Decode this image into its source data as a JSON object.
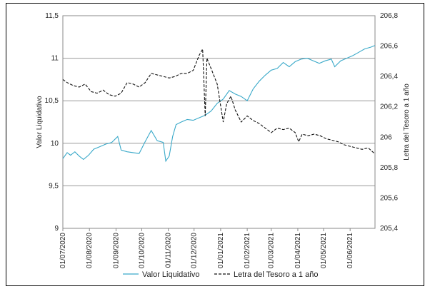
{
  "chart_data": {
    "type": "line",
    "title": "",
    "ylabel": "Valor Liquidativo",
    "y2label": "Letra del Tesoro a 1 año",
    "ylim": [
      9,
      11.5
    ],
    "y2lim": [
      205.4,
      206.8
    ],
    "xlim": [
      "2020-07-01",
      "2021-06-30"
    ],
    "y_ticks": [
      "9",
      "9,5",
      "10",
      "10,5",
      "11",
      "11,5"
    ],
    "y2_ticks": [
      "205,4",
      "205,6",
      "205,8",
      "206",
      "206,2",
      "206,4",
      "206,6",
      "206,8"
    ],
    "x_ticks": [
      {
        "date": "2020-07-01",
        "label": "01/07/2020"
      },
      {
        "date": "2020-08-01",
        "label": "01/08/2020"
      },
      {
        "date": "2020-09-01",
        "label": "01/09/2020"
      },
      {
        "date": "2020-10-01",
        "label": "01/10/2020"
      },
      {
        "date": "2020-11-01",
        "label": "01/11/2020"
      },
      {
        "date": "2020-12-01",
        "label": "01/12/2020"
      },
      {
        "date": "2021-01-01",
        "label": "01/01/2021"
      },
      {
        "date": "2021-02-01",
        "label": "01/02/2021"
      },
      {
        "date": "2021-03-01",
        "label": "01/03/2021"
      },
      {
        "date": "2021-04-01",
        "label": "01/04/2021"
      },
      {
        "date": "2021-05-01",
        "label": "01/05/2021"
      },
      {
        "date": "2021-06-01",
        "label": "01/06/2021"
      }
    ],
    "grid": true,
    "legend_position": "bottom",
    "series": [
      {
        "name": "Valor Liquidativo",
        "axis": "left",
        "color": "#3aa9c9",
        "dash": "solid",
        "points": [
          [
            "2020-07-01",
            9.82
          ],
          [
            "2020-07-06",
            9.89
          ],
          [
            "2020-07-10",
            9.86
          ],
          [
            "2020-07-15",
            9.9
          ],
          [
            "2020-07-20",
            9.85
          ],
          [
            "2020-07-25",
            9.81
          ],
          [
            "2020-07-31",
            9.86
          ],
          [
            "2020-08-06",
            9.93
          ],
          [
            "2020-08-13",
            9.96
          ],
          [
            "2020-08-20",
            9.99
          ],
          [
            "2020-08-27",
            10.01
          ],
          [
            "2020-09-03",
            10.08
          ],
          [
            "2020-09-07",
            9.92
          ],
          [
            "2020-09-14",
            9.9
          ],
          [
            "2020-09-21",
            9.89
          ],
          [
            "2020-09-28",
            9.88
          ],
          [
            "2020-10-05",
            10.02
          ],
          [
            "2020-10-12",
            10.15
          ],
          [
            "2020-10-19",
            10.03
          ],
          [
            "2020-10-26",
            10.01
          ],
          [
            "2020-10-29",
            9.79
          ],
          [
            "2020-11-02",
            9.85
          ],
          [
            "2020-11-06",
            10.08
          ],
          [
            "2020-11-10",
            10.22
          ],
          [
            "2020-11-16",
            10.25
          ],
          [
            "2020-11-23",
            10.28
          ],
          [
            "2020-11-30",
            10.27
          ],
          [
            "2020-12-07",
            10.3
          ],
          [
            "2020-12-14",
            10.33
          ],
          [
            "2020-12-21",
            10.38
          ],
          [
            "2020-12-28",
            10.47
          ],
          [
            "2021-01-04",
            10.52
          ],
          [
            "2021-01-11",
            10.62
          ],
          [
            "2021-01-18",
            10.58
          ],
          [
            "2021-01-25",
            10.55
          ],
          [
            "2021-02-01",
            10.5
          ],
          [
            "2021-02-08",
            10.64
          ],
          [
            "2021-02-15",
            10.73
          ],
          [
            "2021-02-22",
            10.8
          ],
          [
            "2021-03-01",
            10.86
          ],
          [
            "2021-03-08",
            10.88
          ],
          [
            "2021-03-15",
            10.95
          ],
          [
            "2021-03-22",
            10.9
          ],
          [
            "2021-03-29",
            10.96
          ],
          [
            "2021-04-05",
            10.99
          ],
          [
            "2021-04-12",
            11.0
          ],
          [
            "2021-04-19",
            10.97
          ],
          [
            "2021-04-26",
            10.94
          ],
          [
            "2021-05-03",
            10.97
          ],
          [
            "2021-05-10",
            10.99
          ],
          [
            "2021-05-14",
            10.9
          ],
          [
            "2021-05-21",
            10.97
          ],
          [
            "2021-05-28",
            11.0
          ],
          [
            "2021-06-04",
            11.03
          ],
          [
            "2021-06-11",
            11.07
          ],
          [
            "2021-06-18",
            11.11
          ],
          [
            "2021-06-25",
            11.13
          ],
          [
            "2021-06-30",
            11.15
          ]
        ]
      },
      {
        "name": "Letra del Tesoro a 1 año",
        "axis": "right",
        "color": "#111111",
        "dash": "dashed",
        "points": [
          [
            "2020-07-01",
            206.38
          ],
          [
            "2020-07-06",
            206.36
          ],
          [
            "2020-07-13",
            206.34
          ],
          [
            "2020-07-20",
            206.33
          ],
          [
            "2020-07-27",
            206.35
          ],
          [
            "2020-08-03",
            206.3
          ],
          [
            "2020-08-10",
            206.29
          ],
          [
            "2020-08-17",
            206.31
          ],
          [
            "2020-08-24",
            206.28
          ],
          [
            "2020-08-31",
            206.27
          ],
          [
            "2020-09-07",
            206.29
          ],
          [
            "2020-09-14",
            206.36
          ],
          [
            "2020-09-21",
            206.35
          ],
          [
            "2020-09-28",
            206.33
          ],
          [
            "2020-10-05",
            206.36
          ],
          [
            "2020-10-12",
            206.42
          ],
          [
            "2020-10-19",
            206.41
          ],
          [
            "2020-10-26",
            206.4
          ],
          [
            "2020-11-02",
            206.39
          ],
          [
            "2020-11-09",
            206.4
          ],
          [
            "2020-11-16",
            206.42
          ],
          [
            "2020-11-23",
            206.42
          ],
          [
            "2020-11-30",
            206.44
          ],
          [
            "2020-12-07",
            206.54
          ],
          [
            "2020-12-11",
            206.58
          ],
          [
            "2020-12-14",
            206.14
          ],
          [
            "2020-12-16",
            206.52
          ],
          [
            "2020-12-21",
            206.45
          ],
          [
            "2020-12-28",
            206.35
          ],
          [
            "2021-01-04",
            206.1
          ],
          [
            "2021-01-08",
            206.22
          ],
          [
            "2021-01-13",
            206.27
          ],
          [
            "2021-01-18",
            206.18
          ],
          [
            "2021-01-25",
            206.1
          ],
          [
            "2021-02-01",
            206.14
          ],
          [
            "2021-02-08",
            206.11
          ],
          [
            "2021-02-15",
            206.09
          ],
          [
            "2021-02-22",
            206.06
          ],
          [
            "2021-03-01",
            206.03
          ],
          [
            "2021-03-08",
            206.06
          ],
          [
            "2021-03-15",
            206.05
          ],
          [
            "2021-03-22",
            206.06
          ],
          [
            "2021-03-29",
            206.03
          ],
          [
            "2021-04-02",
            205.97
          ],
          [
            "2021-04-06",
            206.02
          ],
          [
            "2021-04-13",
            206.01
          ],
          [
            "2021-04-20",
            206.02
          ],
          [
            "2021-04-27",
            206.01
          ],
          [
            "2021-05-04",
            205.99
          ],
          [
            "2021-05-11",
            205.98
          ],
          [
            "2021-05-18",
            205.97
          ],
          [
            "2021-05-25",
            205.95
          ],
          [
            "2021-06-01",
            205.94
          ],
          [
            "2021-06-08",
            205.93
          ],
          [
            "2021-06-15",
            205.92
          ],
          [
            "2021-06-22",
            205.93
          ],
          [
            "2021-06-30",
            205.89
          ]
        ]
      }
    ]
  }
}
